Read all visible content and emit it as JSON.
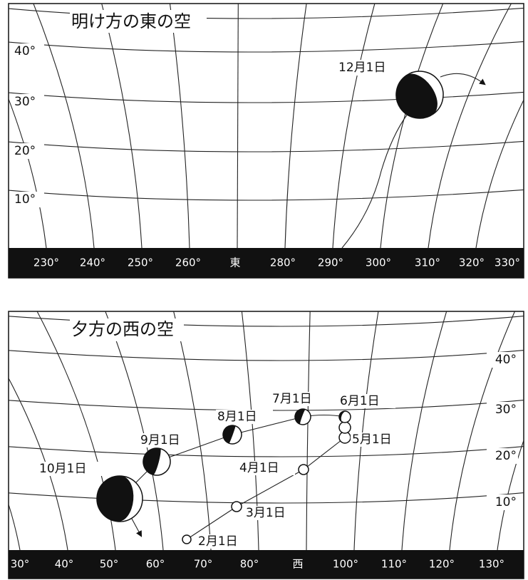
{
  "top_panel": {
    "title": "明け方の東の空",
    "altitude_labels": [
      "40°",
      "30°",
      "20°",
      "10°"
    ],
    "azimuth_labels": [
      "230°",
      "240°",
      "250°",
      "260°",
      "東",
      "280°",
      "290°",
      "300°",
      "310°",
      "320°",
      "330°"
    ],
    "annotations": [
      "12月1日"
    ]
  },
  "bottom_panel": {
    "title": "夕方の西の空",
    "altitude_labels": [
      "40°",
      "30°",
      "20°",
      "10°"
    ],
    "azimuth_labels": [
      "30°",
      "40°",
      "50°",
      "60°",
      "70°",
      "80°",
      "西",
      "100°",
      "110°",
      "120°",
      "130°"
    ],
    "annotations": [
      "2月1日",
      "3月1日",
      "4月1日",
      "5月1日",
      "6月1日",
      "7月1日",
      "8月1日",
      "9月1日",
      "10月1日"
    ]
  }
}
